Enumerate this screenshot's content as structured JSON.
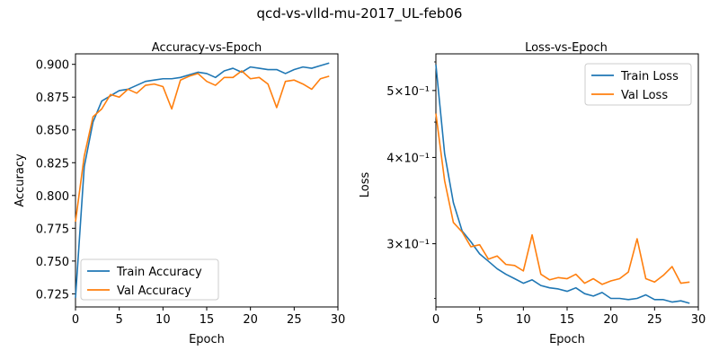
{
  "figure_title": "qcd-vs-vlld-mu-2017_UL-feb06",
  "colors": {
    "train": "#1f77b4",
    "val": "#ff7f0e"
  },
  "chart_data": [
    {
      "type": "line",
      "title": "Accuracy-vs-Epoch",
      "xlabel": "Epoch",
      "ylabel": "Accuracy",
      "xlim": [
        0,
        30
      ],
      "ylim": [
        0.715,
        0.908
      ],
      "xticks": [
        0,
        5,
        10,
        15,
        20,
        25,
        30
      ],
      "xtick_labels": [
        "0",
        "5",
        "10",
        "15",
        "20",
        "25",
        "30"
      ],
      "yticks": [
        0.725,
        0.75,
        0.775,
        0.8,
        0.825,
        0.85,
        0.875,
        0.9
      ],
      "ytick_labels": [
        "0.725",
        "0.750",
        "0.775",
        "0.800",
        "0.825",
        "0.850",
        "0.875",
        "0.900"
      ],
      "y_scale": "linear",
      "grid": false,
      "legend_position": "lower-left",
      "x": [
        0,
        1,
        2,
        3,
        4,
        5,
        6,
        7,
        8,
        9,
        10,
        11,
        12,
        13,
        14,
        15,
        16,
        17,
        18,
        19,
        20,
        21,
        22,
        23,
        24,
        25,
        26,
        27,
        28,
        29
      ],
      "series": [
        {
          "name": "Train Accuracy",
          "color": "#1f77b4",
          "values": [
            0.722,
            0.822,
            0.856,
            0.872,
            0.876,
            0.88,
            0.881,
            0.884,
            0.887,
            0.888,
            0.889,
            0.889,
            0.89,
            0.892,
            0.894,
            0.893,
            0.89,
            0.895,
            0.897,
            0.894,
            0.898,
            0.897,
            0.896,
            0.896,
            0.893,
            0.896,
            0.898,
            0.897,
            0.899,
            0.901
          ]
        },
        {
          "name": "Val Accuracy",
          "color": "#ff7f0e",
          "values": [
            0.78,
            0.83,
            0.86,
            0.866,
            0.877,
            0.875,
            0.881,
            0.878,
            0.884,
            0.885,
            0.883,
            0.866,
            0.888,
            0.891,
            0.893,
            0.887,
            0.884,
            0.89,
            0.89,
            0.895,
            0.889,
            0.89,
            0.885,
            0.867,
            0.887,
            0.888,
            0.885,
            0.881,
            0.889,
            0.891
          ]
        }
      ]
    },
    {
      "type": "line",
      "title": "Loss-vs-Epoch",
      "xlabel": "Epoch",
      "ylabel": "Loss",
      "xlim": [
        0,
        30
      ],
      "ylim": [
        0.243,
        0.565
      ],
      "xticks": [
        0,
        5,
        10,
        15,
        20,
        25,
        30
      ],
      "xtick_labels": [
        "0",
        "5",
        "10",
        "15",
        "20",
        "25",
        "30"
      ],
      "yticks": [
        0.3,
        0.4,
        0.5
      ],
      "ytick_labels": [
        "3×10⁻¹",
        "4×10⁻¹",
        "5×10⁻¹"
      ],
      "y_scale": "log",
      "grid": false,
      "legend_position": "upper-right",
      "x": [
        0,
        1,
        2,
        3,
        4,
        5,
        6,
        7,
        8,
        9,
        10,
        11,
        12,
        13,
        14,
        15,
        16,
        17,
        18,
        19,
        20,
        21,
        22,
        23,
        24,
        25,
        26,
        27,
        28,
        29
      ],
      "series": [
        {
          "name": "Train Loss",
          "color": "#1f77b4",
          "values": [
            0.545,
            0.405,
            0.344,
            0.313,
            0.302,
            0.29,
            0.283,
            0.276,
            0.271,
            0.267,
            0.263,
            0.266,
            0.261,
            0.259,
            0.258,
            0.256,
            0.259,
            0.254,
            0.252,
            0.255,
            0.25,
            0.25,
            0.249,
            0.25,
            0.253,
            0.249,
            0.249,
            0.247,
            0.248,
            0.246
          ]
        },
        {
          "name": "Val Loss",
          "color": "#ff7f0e",
          "values": [
            0.463,
            0.37,
            0.322,
            0.312,
            0.297,
            0.299,
            0.285,
            0.288,
            0.28,
            0.279,
            0.274,
            0.309,
            0.271,
            0.266,
            0.268,
            0.267,
            0.271,
            0.263,
            0.267,
            0.262,
            0.265,
            0.267,
            0.273,
            0.305,
            0.267,
            0.264,
            0.27,
            0.278,
            0.263,
            0.264
          ]
        }
      ]
    }
  ]
}
